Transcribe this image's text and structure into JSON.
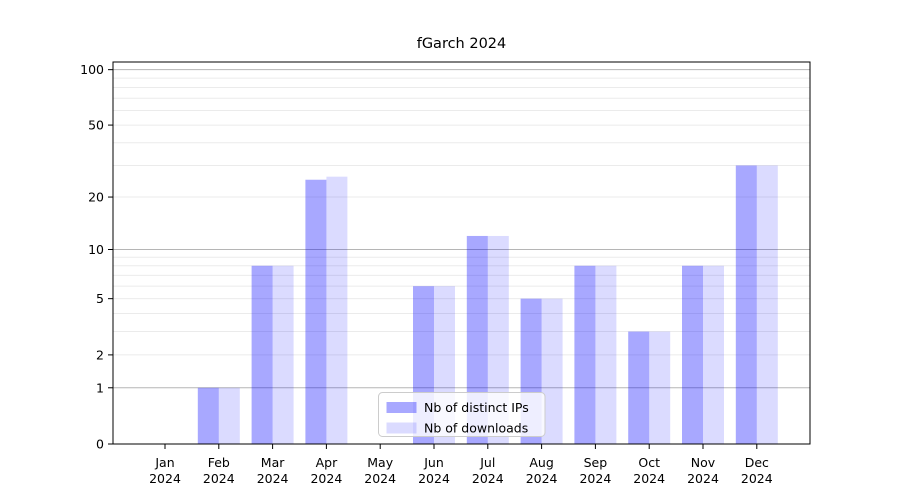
{
  "title": "fGarch 2024",
  "chart_data": {
    "type": "bar",
    "title": "fGarch 2024",
    "categories": [
      "Jan",
      "Feb",
      "Mar",
      "Apr",
      "May",
      "Jun",
      "Jul",
      "Aug",
      "Sep",
      "Oct",
      "Nov",
      "Dec"
    ],
    "category_year": "2024",
    "series": [
      {
        "name": "Nb of distinct IPs",
        "color": "#a8a8f8",
        "rgba": "rgba(0,0,255,0.34)",
        "values": [
          0,
          1,
          8,
          25,
          0,
          6,
          12,
          5,
          8,
          3,
          8,
          30
        ]
      },
      {
        "name": "Nb of downloads",
        "color": "#dcdcfc",
        "rgba": "rgba(0,0,255,0.14)",
        "values": [
          0,
          1,
          8,
          26,
          0,
          6,
          12,
          5,
          8,
          3,
          8,
          30
        ]
      }
    ],
    "xlabel": "",
    "ylabel": "",
    "y_scale": "log1p",
    "ylim": [
      0,
      110
    ],
    "y_tick_labels": [
      0,
      1,
      2,
      5,
      10,
      20,
      50,
      100
    ],
    "y_gridlines_major": [
      1,
      10,
      100
    ],
    "y_gridlines_minor": [
      2,
      3,
      4,
      5,
      6,
      7,
      8,
      9,
      20,
      30,
      40,
      50,
      60,
      70,
      80,
      90
    ],
    "grid": true,
    "legend_position": "lower center"
  },
  "colors": {
    "bar_dark": "rgba(0,0,255,0.34)",
    "bar_light": "rgba(0,0,255,0.14)",
    "grid_major": "#b5b5b5",
    "grid_minor": "#ebebeb",
    "axis": "#000000",
    "legend_border": "#cccccc",
    "legend_bg": "rgba(255,255,255,0.8)"
  }
}
